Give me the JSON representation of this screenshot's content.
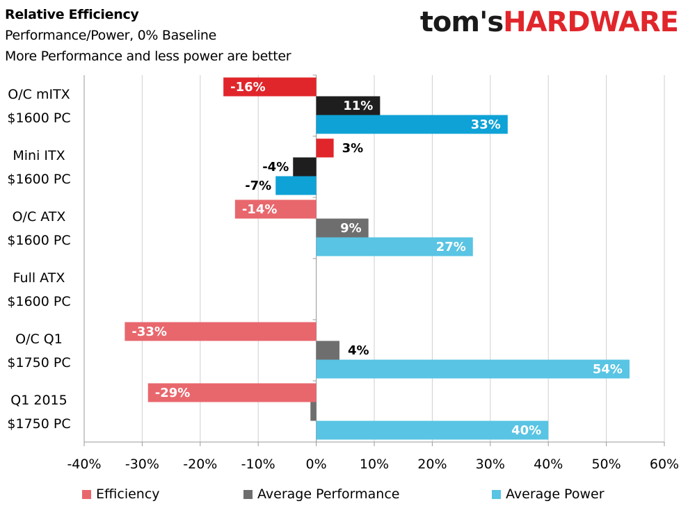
{
  "header": {
    "title": "Relative Efficiency",
    "subtitle1": "Performance/Power, 0% Baseline",
    "subtitle2": "More Performance and less power are better"
  },
  "logo": {
    "part1": "tom's",
    "part2": "HARDWARE"
  },
  "chart_data": {
    "type": "bar",
    "orientation": "horizontal",
    "title": "Relative Efficiency",
    "categories": [
      [
        "O/C mITX",
        "$1600 PC"
      ],
      [
        "Mini ITX",
        "$1600 PC"
      ],
      [
        "O/C ATX",
        "$1600 PC"
      ],
      [
        "Full ATX",
        "$1600 PC"
      ],
      [
        "O/C Q1",
        "$1750 PC"
      ],
      [
        "Q1 2015",
        "$1750 PC"
      ]
    ],
    "series": [
      {
        "name": "Efficiency",
        "values": [
          -16,
          3,
          -14,
          0,
          -33,
          -29
        ],
        "labels": [
          "-16%",
          "3%",
          "-14%",
          "",
          "-33%",
          "-29%"
        ]
      },
      {
        "name": "Average Performance",
        "values": [
          11,
          -4,
          9,
          0,
          4,
          -1
        ],
        "labels": [
          "11%",
          "-4%",
          "9%",
          "",
          "4%",
          ""
        ]
      },
      {
        "name": "Average Power",
        "values": [
          33,
          -7,
          27,
          0,
          54,
          40
        ],
        "labels": [
          "33%",
          "-7%",
          "27%",
          "",
          "54%",
          "40%"
        ]
      }
    ],
    "highlighted_categories": [
      0,
      1
    ],
    "colors": {
      "Efficiency": "#e8676d",
      "Efficiency_highlight": "#e0262b",
      "Average Performance": "#6e6e6e",
      "Average Performance_highlight": "#1e1e1e",
      "Average Power": "#59c4e3",
      "Average Power_highlight": "#0fa2d6"
    },
    "xlim": [
      -40,
      60
    ],
    "xticks": [
      "-40%",
      "-30%",
      "-20%",
      "-10%",
      "0%",
      "10%",
      "20%",
      "30%",
      "40%",
      "50%",
      "60%"
    ],
    "grid": true,
    "legend": "bottom"
  }
}
